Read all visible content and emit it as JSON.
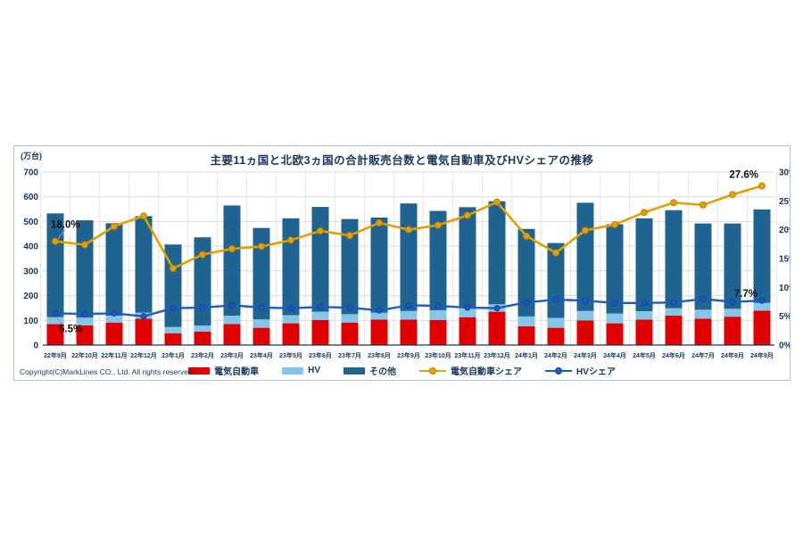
{
  "page": {
    "background": "#FFFFFF"
  },
  "chart": {
    "title": "主要11ヵ国と北欧3ヵ国の合計販売台数と電気自動車及びHVシェアの推移",
    "unit_label": "(万台)",
    "copyright": "Copyright(C)MarkLines CO., Ltd. All rights reserved.",
    "colors": {
      "ev_bar": "#E00000",
      "hv_bar": "#86C5E8",
      "other_bar": "#1F6491",
      "ev_share_line": "#DFA000",
      "ev_share_marker": "#E8A000",
      "hv_share_line": "#1C5CC2",
      "axis_text": "#17375E",
      "gridline": "#D9D9D9",
      "vertical_gridline": "#E3E3E3",
      "baseline": "#17375E",
      "annotation_text": "#111111",
      "frame_border": "#A9C3DC"
    },
    "legend": [
      {
        "label": "電気自動車",
        "swatch": "bar",
        "color": "#E00000"
      },
      {
        "label": "HV",
        "swatch": "bar",
        "color": "#86C5E8"
      },
      {
        "label": "その他",
        "swatch": "bar",
        "color": "#1F6491"
      },
      {
        "label": "電気自動車シェア",
        "swatch": "line",
        "color": "#DFA000"
      },
      {
        "label": "HVシェア",
        "swatch": "line",
        "color": "#1C5CC2"
      }
    ]
  },
  "chart_data": {
    "type": "bar",
    "subtype": "stacked-bars-with-lines",
    "title": "主要11ヵ国と北欧3ヵ国の合計販売台数と電気自動車及びHVシェアの推移",
    "categories": [
      "22年9月",
      "22年10月",
      "22年11月",
      "22年12月",
      "23年1月",
      "23年2月",
      "23年3月",
      "23年4月",
      "23年5月",
      "23年6月",
      "23年7月",
      "23年8月",
      "23年9月",
      "23年10月",
      "23年11月",
      "23年12月",
      "24年1月",
      "24年2月",
      "24年3月",
      "24年4月",
      "24年5月",
      "24年6月",
      "24年7月",
      "24年8月",
      "24年9月"
    ],
    "series": [
      {
        "name": "電気自動車",
        "type": "bar",
        "stack": "sales",
        "axis": "left",
        "color": "#E00000",
        "values": [
          85,
          80,
          91,
          107,
          48,
          55,
          85,
          70,
          88,
          101,
          91,
          103,
          103,
          101,
          113,
          135,
          76,
          70,
          100,
          88,
          103,
          119,
          107,
          115,
          139
        ]
      },
      {
        "name": "HV",
        "type": "bar",
        "stack": "sales",
        "axis": "left",
        "color": "#86C5E8",
        "values": [
          28,
          31,
          28,
          24,
          25,
          24,
          34,
          34,
          33,
          34,
          34,
          28,
          35,
          40,
          38,
          30,
          40,
          40,
          38,
          40,
          34,
          30,
          36,
          32,
          32
        ]
      },
      {
        "name": "その他",
        "type": "bar",
        "stack": "sales",
        "axis": "left",
        "color": "#1F6491",
        "values": [
          420,
          394,
          374,
          391,
          334,
          357,
          446,
          370,
          392,
          424,
          385,
          385,
          435,
          402,
          407,
          417,
          354,
          303,
          438,
          361,
          376,
          397,
          349,
          345,
          378
        ]
      },
      {
        "name": "電気自動車シェア",
        "type": "line",
        "axis": "right",
        "color": "#DFA000",
        "values": [
          18.0,
          17.4,
          20.6,
          22.4,
          13.3,
          15.7,
          16.7,
          17.1,
          18.2,
          19.8,
          19.0,
          21.2,
          20.0,
          20.8,
          22.5,
          24.8,
          18.9,
          16.0,
          19.9,
          20.9,
          23.0,
          24.7,
          24.3,
          26.1,
          27.6
        ]
      },
      {
        "name": "HVシェア",
        "type": "line",
        "axis": "right",
        "color": "#1C5CC2",
        "values": [
          5.5,
          5.4,
          5.5,
          5.0,
          6.4,
          6.5,
          6.9,
          6.5,
          6.4,
          6.6,
          6.5,
          6.0,
          6.9,
          6.8,
          6.5,
          6.4,
          7.4,
          7.9,
          7.7,
          7.3,
          7.3,
          7.4,
          8.0,
          7.5,
          7.7
        ]
      }
    ],
    "left_axis": {
      "label": "(万台)",
      "min": 0,
      "max": 700,
      "ticks": [
        0,
        100,
        200,
        300,
        400,
        500,
        600,
        700
      ]
    },
    "right_axis": {
      "min": 0,
      "max": 30,
      "ticks": [
        "0%",
        "5%",
        "10%",
        "15%",
        "20%",
        "25%",
        "30%"
      ]
    },
    "grid": {
      "horizontal": true,
      "vertical": true
    },
    "legend_position": "bottom",
    "annotations": [
      {
        "id": "ev-share-first",
        "text": "18.0%",
        "series_index": 3,
        "point_index": 0
      },
      {
        "id": "hv-share-first",
        "text": "5.5%",
        "series_index": 4,
        "point_index": 0
      },
      {
        "id": "ev-share-last",
        "text": "27.6%",
        "series_index": 3,
        "point_index": 24
      },
      {
        "id": "hv-share-last",
        "text": "7.7%",
        "series_index": 4,
        "point_index": 24
      }
    ]
  }
}
